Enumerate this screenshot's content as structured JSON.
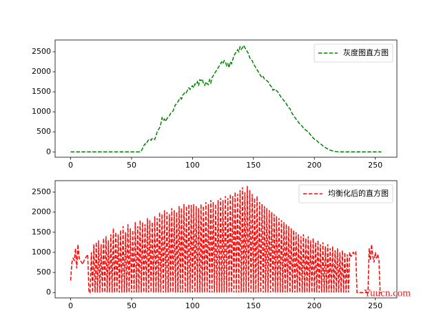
{
  "chart_data": [
    {
      "type": "line",
      "x": [
        0,
        1,
        2,
        3,
        4,
        5,
        6,
        7,
        8,
        9,
        10,
        11,
        12,
        13,
        14,
        15,
        16,
        17,
        18,
        19,
        20,
        21,
        22,
        23,
        24,
        25,
        26,
        27,
        28,
        29,
        30,
        31,
        32,
        33,
        34,
        35,
        36,
        37,
        38,
        39,
        40,
        41,
        42,
        43,
        44,
        45,
        46,
        47,
        48,
        49,
        50,
        51,
        52,
        53,
        54,
        55,
        56,
        57,
        58,
        59,
        60,
        61,
        62,
        63,
        64,
        65,
        66,
        67,
        68,
        69,
        70,
        71,
        72,
        73,
        74,
        75,
        76,
        77,
        78,
        79,
        80,
        81,
        82,
        83,
        84,
        85,
        86,
        87,
        88,
        89,
        90,
        91,
        92,
        93,
        94,
        95,
        96,
        97,
        98,
        99,
        100,
        101,
        102,
        103,
        104,
        105,
        106,
        107,
        108,
        109,
        110,
        111,
        112,
        113,
        114,
        115,
        116,
        117,
        118,
        119,
        120,
        121,
        122,
        123,
        124,
        125,
        126,
        127,
        128,
        129,
        130,
        131,
        132,
        133,
        134,
        135,
        136,
        137,
        138,
        139,
        140,
        141,
        142,
        143,
        144,
        145,
        146,
        147,
        148,
        149,
        150,
        151,
        152,
        153,
        154,
        155,
        156,
        157,
        158,
        159,
        160,
        161,
        162,
        163,
        164,
        165,
        166,
        167,
        168,
        169,
        170,
        171,
        172,
        173,
        174,
        175,
        176,
        177,
        178,
        179,
        180,
        181,
        182,
        183,
        184,
        185,
        186,
        187,
        188,
        189,
        190,
        191,
        192,
        193,
        194,
        195,
        196,
        197,
        198,
        199,
        200,
        201,
        202,
        203,
        204,
        205,
        206,
        207,
        208,
        209,
        210,
        211,
        212,
        213,
        214,
        215,
        216,
        217,
        218,
        219,
        220,
        221,
        222,
        223,
        224,
        225,
        226,
        227,
        228,
        229,
        230,
        231,
        232,
        233,
        234,
        235,
        236,
        237,
        238,
        239,
        240,
        241,
        242,
        243,
        244,
        245,
        246,
        247,
        248,
        249,
        250,
        251,
        252,
        253,
        254,
        255
      ],
      "series": [
        {
          "name": "灰度图直方图",
          "color": "#008000",
          "values": [
            0,
            0,
            0,
            0,
            0,
            0,
            0,
            0,
            0,
            0,
            0,
            0,
            0,
            0,
            0,
            0,
            0,
            0,
            0,
            0,
            0,
            0,
            0,
            0,
            0,
            0,
            0,
            0,
            0,
            0,
            0,
            0,
            0,
            0,
            0,
            0,
            0,
            0,
            0,
            0,
            0,
            0,
            0,
            0,
            0,
            0,
            0,
            0,
            0,
            0,
            0,
            0,
            0,
            0,
            0,
            0,
            0,
            0,
            30,
            80,
            150,
            200,
            190,
            260,
            300,
            320,
            290,
            340,
            330,
            310,
            400,
            500,
            560,
            600,
            700,
            850,
            780,
            820,
            760,
            830,
            870,
            900,
            960,
            1000,
            1020,
            1100,
            1180,
            1200,
            1250,
            1300,
            1350,
            1320,
            1420,
            1450,
            1500,
            1480,
            1550,
            1600,
            1560,
            1620,
            1650,
            1600,
            1700,
            1680,
            1750,
            1650,
            1800,
            1780,
            1820,
            1700,
            1660,
            1750,
            1700,
            1680,
            1800,
            1720,
            1850,
            1900,
            1950,
            2000,
            2050,
            2100,
            2150,
            2200,
            2250,
            2200,
            2280,
            2250,
            2150,
            2200,
            2100,
            2250,
            2200,
            2300,
            2400,
            2450,
            2500,
            2550,
            2500,
            2620,
            2560,
            2600,
            2660,
            2600,
            2550,
            2500,
            2450,
            2350,
            2300,
            2280,
            2200,
            2150,
            2100,
            2050,
            2000,
            1950,
            1900,
            1850,
            1880,
            1820,
            1800,
            1780,
            1750,
            1700,
            1650,
            1620,
            1540,
            1560,
            1520,
            1530,
            1500,
            1450,
            1400,
            1350,
            1320,
            1280,
            1250,
            1200,
            1150,
            1100,
            1080,
            1000,
            950,
            900,
            860,
            820,
            780,
            740,
            700,
            670,
            640,
            600,
            570,
            540,
            520,
            500,
            460,
            420,
            380,
            350,
            320,
            300,
            280,
            250,
            220,
            200,
            180,
            150,
            130,
            110,
            90,
            75,
            60,
            45,
            35,
            25,
            18,
            12,
            8,
            5,
            3,
            1,
            0,
            0,
            0,
            0,
            0,
            0,
            0,
            0,
            0,
            0,
            0,
            0,
            0,
            0,
            0,
            0,
            0,
            0,
            0,
            0,
            0,
            0,
            0,
            0,
            0,
            0,
            0,
            0,
            0,
            0,
            0,
            0,
            0,
            0
          ]
        }
      ],
      "xlim": [
        -12.75,
        267.75
      ],
      "xticks": [
        0,
        50,
        100,
        150,
        200,
        250
      ],
      "ylim": [
        -133,
        2793
      ],
      "yticks": [
        0,
        500,
        1000,
        1500,
        2000,
        2500
      ],
      "legend": "upper right"
    },
    {
      "type": "line",
      "x": [
        0,
        1,
        2,
        3,
        4,
        5,
        6,
        7,
        8,
        9,
        10,
        11,
        12,
        13,
        14,
        15,
        16,
        17,
        18,
        19,
        20,
        21,
        22,
        23,
        24,
        25,
        26,
        27,
        28,
        29,
        30,
        31,
        32,
        33,
        34,
        35,
        36,
        37,
        38,
        39,
        40,
        41,
        42,
        43,
        44,
        45,
        46,
        47,
        48,
        49,
        50,
        51,
        52,
        53,
        54,
        55,
        56,
        57,
        58,
        59,
        60,
        61,
        62,
        63,
        64,
        65,
        66,
        67,
        68,
        69,
        70,
        71,
        72,
        73,
        74,
        75,
        76,
        77,
        78,
        79,
        80,
        81,
        82,
        83,
        84,
        85,
        86,
        87,
        88,
        89,
        90,
        91,
        92,
        93,
        94,
        95,
        96,
        97,
        98,
        99,
        100,
        101,
        102,
        103,
        104,
        105,
        106,
        107,
        108,
        109,
        110,
        111,
        112,
        113,
        114,
        115,
        116,
        117,
        118,
        119,
        120,
        121,
        122,
        123,
        124,
        125,
        126,
        127,
        128,
        129,
        130,
        131,
        132,
        133,
        134,
        135,
        136,
        137,
        138,
        139,
        140,
        141,
        142,
        143,
        144,
        145,
        146,
        147,
        148,
        149,
        150,
        151,
        152,
        153,
        154,
        155,
        156,
        157,
        158,
        159,
        160,
        161,
        162,
        163,
        164,
        165,
        166,
        167,
        168,
        169,
        170,
        171,
        172,
        173,
        174,
        175,
        176,
        177,
        178,
        179,
        180,
        181,
        182,
        183,
        184,
        185,
        186,
        187,
        188,
        189,
        190,
        191,
        192,
        193,
        194,
        195,
        196,
        197,
        198,
        199,
        200,
        201,
        202,
        203,
        204,
        205,
        206,
        207,
        208,
        209,
        210,
        211,
        212,
        213,
        214,
        215,
        216,
        217,
        218,
        219,
        220,
        221,
        222,
        223,
        224,
        225,
        226,
        227,
        228,
        229,
        230,
        231,
        232,
        233,
        234,
        235,
        236,
        237,
        238,
        239,
        240,
        241,
        242,
        243,
        244,
        245,
        246,
        247,
        248,
        249,
        250,
        251,
        252,
        253,
        254,
        255
      ],
      "series": [
        {
          "name": "均衡化后的直方图",
          "color": "#ff0000",
          "values": [
            300,
            750,
            850,
            800,
            1100,
            600,
            1200,
            850,
            800,
            750,
            700,
            800,
            850,
            900,
            950,
            0,
            0,
            1000,
            0,
            1200,
            0,
            1250,
            0,
            1300,
            0,
            1200,
            0,
            1350,
            0,
            1400,
            0,
            1300,
            0,
            1450,
            0,
            1600,
            0,
            1500,
            0,
            1450,
            0,
            1550,
            0,
            1650,
            0,
            1500,
            0,
            1700,
            0,
            1600,
            0,
            1550,
            0,
            1750,
            0,
            1650,
            0,
            1800,
            0,
            1750,
            0,
            1700,
            0,
            1850,
            0,
            1800,
            0,
            1750,
            0,
            1900,
            0,
            1850,
            0,
            2000,
            0,
            1950,
            0,
            2050,
            0,
            2000,
            0,
            1950,
            0,
            2100,
            0,
            2050,
            0,
            2000,
            0,
            2150,
            0,
            2100,
            0,
            2200,
            0,
            2150,
            0,
            2200,
            0,
            2180,
            0,
            2200,
            0,
            2150,
            0,
            2100,
            0,
            2200,
            0,
            2150,
            0,
            2250,
            0,
            2200,
            0,
            2300,
            0,
            2250,
            0,
            2200,
            0,
            2300,
            0,
            2350,
            0,
            2300,
            0,
            2400,
            0,
            2350,
            0,
            2450,
            0,
            2400,
            0,
            2500,
            0,
            2450,
            0,
            2550,
            0,
            2620,
            0,
            2500,
            0,
            2650,
            0,
            2550,
            0,
            2450,
            0,
            2350,
            0,
            2400,
            0,
            2250,
            0,
            2200,
            0,
            2150,
            0,
            2100,
            0,
            2050,
            0,
            2000,
            0,
            1950,
            0,
            1900,
            0,
            1850,
            0,
            1800,
            0,
            1750,
            0,
            1700,
            0,
            1650,
            0,
            1600,
            0,
            1550,
            0,
            1500,
            0,
            1450,
            0,
            1400,
            0,
            1450,
            0,
            1350,
            0,
            1400,
            0,
            1300,
            0,
            1350,
            0,
            1250,
            0,
            1300,
            0,
            1200,
            0,
            1250,
            0,
            1150,
            0,
            1200,
            0,
            1100,
            0,
            1150,
            0,
            1050,
            0,
            1100,
            0,
            1000,
            0,
            1050,
            0,
            1000,
            0,
            950,
            0,
            1000,
            900,
            950,
            1000,
            950,
            1000,
            0,
            0,
            0,
            0,
            0,
            0,
            0,
            0,
            0,
            0,
            1100,
            800,
            1200,
            900,
            750,
            1000,
            850,
            950,
            800,
            0,
            0
          ]
        }
      ],
      "xlim": [
        -12.75,
        267.75
      ],
      "xticks": [
        0,
        50,
        100,
        150,
        200,
        250
      ],
      "ylim": [
        -133,
        2783
      ],
      "yticks": [
        0,
        500,
        1000,
        1500,
        2000,
        2500
      ],
      "legend": "upper right"
    }
  ],
  "watermark": "Yuucn.com"
}
